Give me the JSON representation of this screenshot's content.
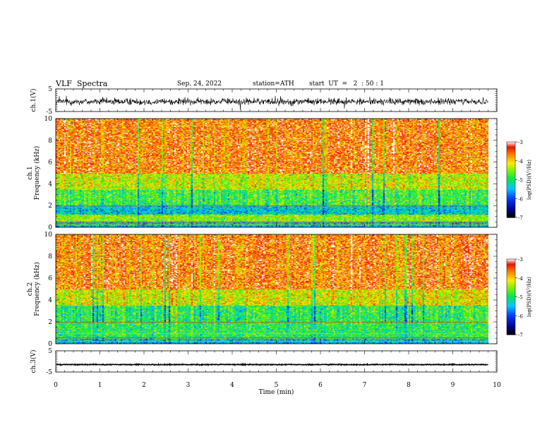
{
  "header": {
    "title": "VLF  Spectra",
    "date": "Sep. 24, 2022",
    "station": "station=ATH",
    "start": "start  UT  =   2  : 50 : 1"
  },
  "chart_data": [
    {
      "type": "line",
      "name": "ch1-waveform",
      "ylabel": "ch.1(V)",
      "ylim": [
        -5,
        5
      ],
      "yticks": [
        -5,
        5
      ],
      "xlim": [
        0,
        10
      ],
      "baseline": -0.6,
      "noise_amplitude": 1.5,
      "data_end_min": 9.8
    },
    {
      "type": "heatmap",
      "name": "ch1-spectrogram",
      "ylabel": "ch.1\nFrequency  (kHz)",
      "ylim": [
        0,
        10
      ],
      "yticks": [
        0,
        2,
        4,
        6,
        8,
        10
      ],
      "xlim": [
        0,
        10
      ],
      "data_end_min": 9.8,
      "colorbar": {
        "label": "log(PSD)(V²/Hz)",
        "range": [
          -7,
          -3
        ],
        "ticks": [
          -3,
          -4,
          -5,
          -6,
          -7
        ]
      },
      "dominant_bands": [
        {
          "freq_khz": [
            0,
            0.5
          ],
          "level": -5.5
        },
        {
          "freq_khz": [
            0.5,
            1.2
          ],
          "level": -4.5
        },
        {
          "freq_khz": [
            1.2,
            2.0
          ],
          "level": -5.4
        },
        {
          "freq_khz": [
            2.0,
            3.5
          ],
          "level": -4.8
        },
        {
          "freq_khz": [
            3.5,
            5.0
          ],
          "level": -4.3
        },
        {
          "freq_khz": [
            5.0,
            10.0
          ],
          "level": -3.6
        }
      ]
    },
    {
      "type": "heatmap",
      "name": "ch2-spectrogram",
      "ylabel": "ch.2\nFrequency  (kHz)",
      "ylim": [
        0,
        10
      ],
      "yticks": [
        0,
        2,
        4,
        6,
        8,
        10
      ],
      "xlim": [
        0,
        10
      ],
      "data_end_min": 9.8,
      "colorbar": {
        "label": "log(PSD)(V²/Hz)",
        "range": [
          -7,
          -3
        ],
        "ticks": [
          -3,
          -4,
          -5,
          -6,
          -7
        ]
      },
      "dominant_bands": [
        {
          "freq_khz": [
            0,
            0.5
          ],
          "level": -5.5
        },
        {
          "freq_khz": [
            0.5,
            2.0
          ],
          "level": -4.9
        },
        {
          "freq_khz": [
            2.0,
            3.5
          ],
          "level": -4.9
        },
        {
          "freq_khz": [
            3.5,
            5.0
          ],
          "level": -4.2
        },
        {
          "freq_khz": [
            5.0,
            10.0
          ],
          "level": -3.6
        }
      ]
    },
    {
      "type": "line",
      "name": "ch3-waveform",
      "ylabel": "ch.3(V)",
      "ylim": [
        -5,
        5
      ],
      "yticks": [
        -5,
        5
      ],
      "xlim": [
        0,
        10
      ],
      "baseline": -1.5,
      "noise_amplitude": 0.2,
      "data_end_min": 9.8
    }
  ],
  "xaxis": {
    "label": "Time  (min)",
    "ticks": [
      0,
      1,
      2,
      3,
      4,
      5,
      6,
      7,
      8,
      9,
      10
    ],
    "range": [
      0,
      10
    ]
  }
}
